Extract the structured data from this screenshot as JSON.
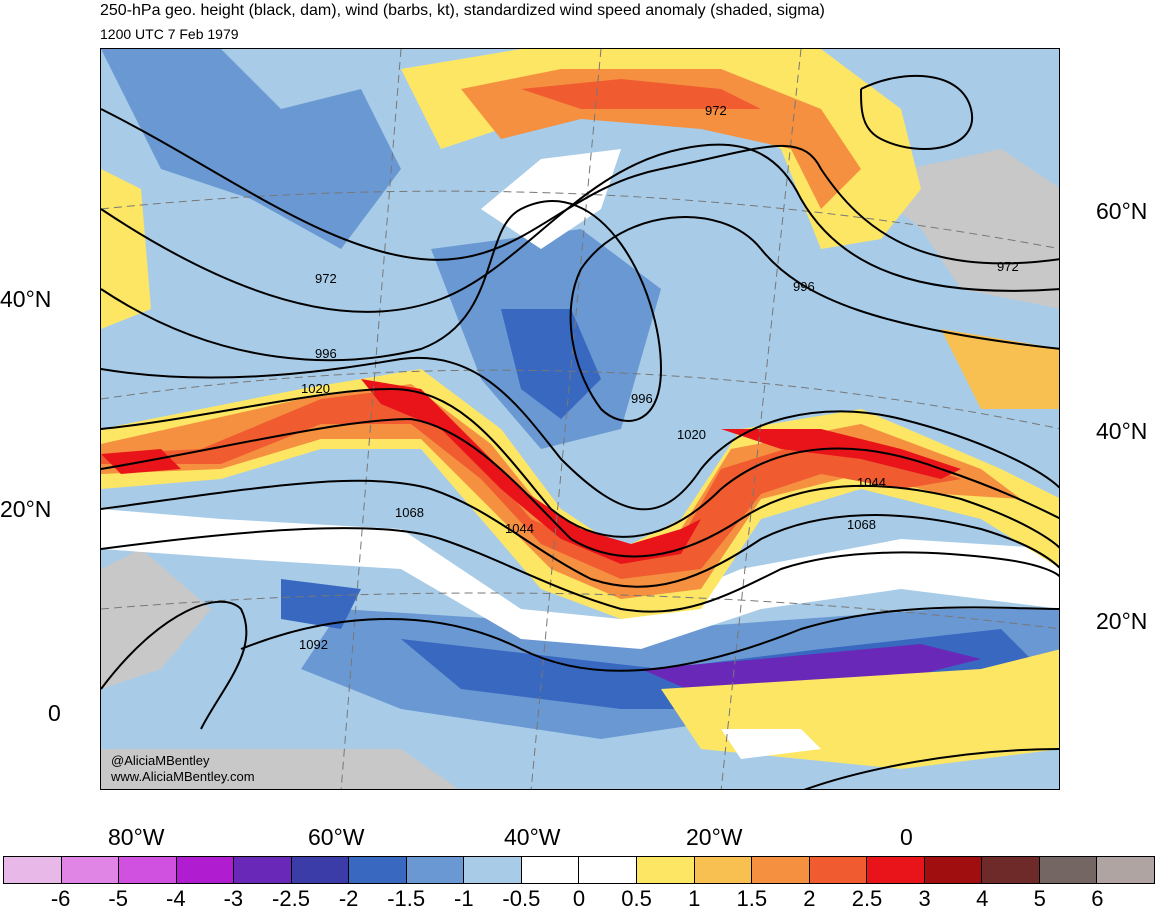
{
  "header": {
    "title": "250-hPa geo. height (black, dam), wind (barbs, kt), standardized wind speed anomaly (shaded, sigma)",
    "subtitle": "1200 UTC 7 Feb 1979"
  },
  "map": {
    "lat_labels_left": [
      "40°N",
      "20°N",
      "0"
    ],
    "lat_labels_right": [
      "60°N",
      "40°N",
      "20°N"
    ],
    "lon_labels": [
      "80°W",
      "60°W",
      "40°W",
      "20°W",
      "0"
    ],
    "contour_labels": [
      "972",
      "972",
      "972",
      "996",
      "996",
      "996",
      "1020",
      "1020",
      "1044",
      "1044",
      "1068",
      "1068",
      "1092"
    ],
    "credit_handle": "@AliciaMBentley",
    "credit_url": "www.AliciaMBentley.com"
  },
  "colorbar": {
    "ticks": [
      "-6",
      "-5",
      "-4",
      "-3",
      "-2.5",
      "-2",
      "-1.5",
      "-1",
      "-0.5",
      "0",
      "0.5",
      "1",
      "1.5",
      "2",
      "2.5",
      "3",
      "4",
      "5",
      "6"
    ],
    "colors": [
      "#e8b8e8",
      "#e084e6",
      "#d050e0",
      "#b01cd0",
      "#6a28b8",
      "#3c3ca8",
      "#3868c0",
      "#6a98d2",
      "#a8cce8",
      "#ffffff",
      "#ffffff",
      "#fce664",
      "#f8c050",
      "#f49040",
      "#f05c30",
      "#e8141a",
      "#a00e10",
      "#6e2a28",
      "#746662",
      "#b0a4a2"
    ]
  }
}
